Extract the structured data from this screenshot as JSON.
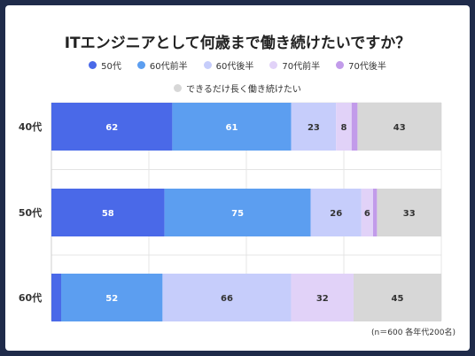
{
  "chart_data": {
    "type": "bar",
    "orientation": "horizontal",
    "stacked": true,
    "title": "ITエンジニアとして何歳まで働き続けたいですか？",
    "categories": [
      "40代",
      "50代",
      "60代"
    ],
    "series": [
      {
        "name": "50代",
        "color": "#4a69e8",
        "values": [
          62,
          58,
          5
        ],
        "labels": [
          "62",
          "58",
          ""
        ]
      },
      {
        "name": "60代前半",
        "color": "#5c9ef0",
        "values": [
          61,
          75,
          52
        ],
        "labels": [
          "61",
          "75",
          "52"
        ]
      },
      {
        "name": "60代後半",
        "color": "#c6cdfb",
        "values": [
          23,
          26,
          66
        ],
        "labels": [
          "23",
          "26",
          "66"
        ]
      },
      {
        "name": "70代前半",
        "color": "#e1d2f8",
        "values": [
          8,
          6,
          32
        ],
        "labels": [
          "8",
          "6",
          "32"
        ]
      },
      {
        "name": "70代後半",
        "color": "#c29bea",
        "values": [
          3,
          2,
          0
        ],
        "labels": [
          "",
          "",
          ""
        ]
      },
      {
        "name": "できるだけ長く働き続けたい",
        "color": "#d7d7d7",
        "values": [
          43,
          33,
          45
        ],
        "labels": [
          "43",
          "33",
          "45"
        ]
      }
    ],
    "xlim": [
      0,
      200
    ],
    "grid": true,
    "legend": "top"
  },
  "note": "(n＝600 各年代200名)"
}
